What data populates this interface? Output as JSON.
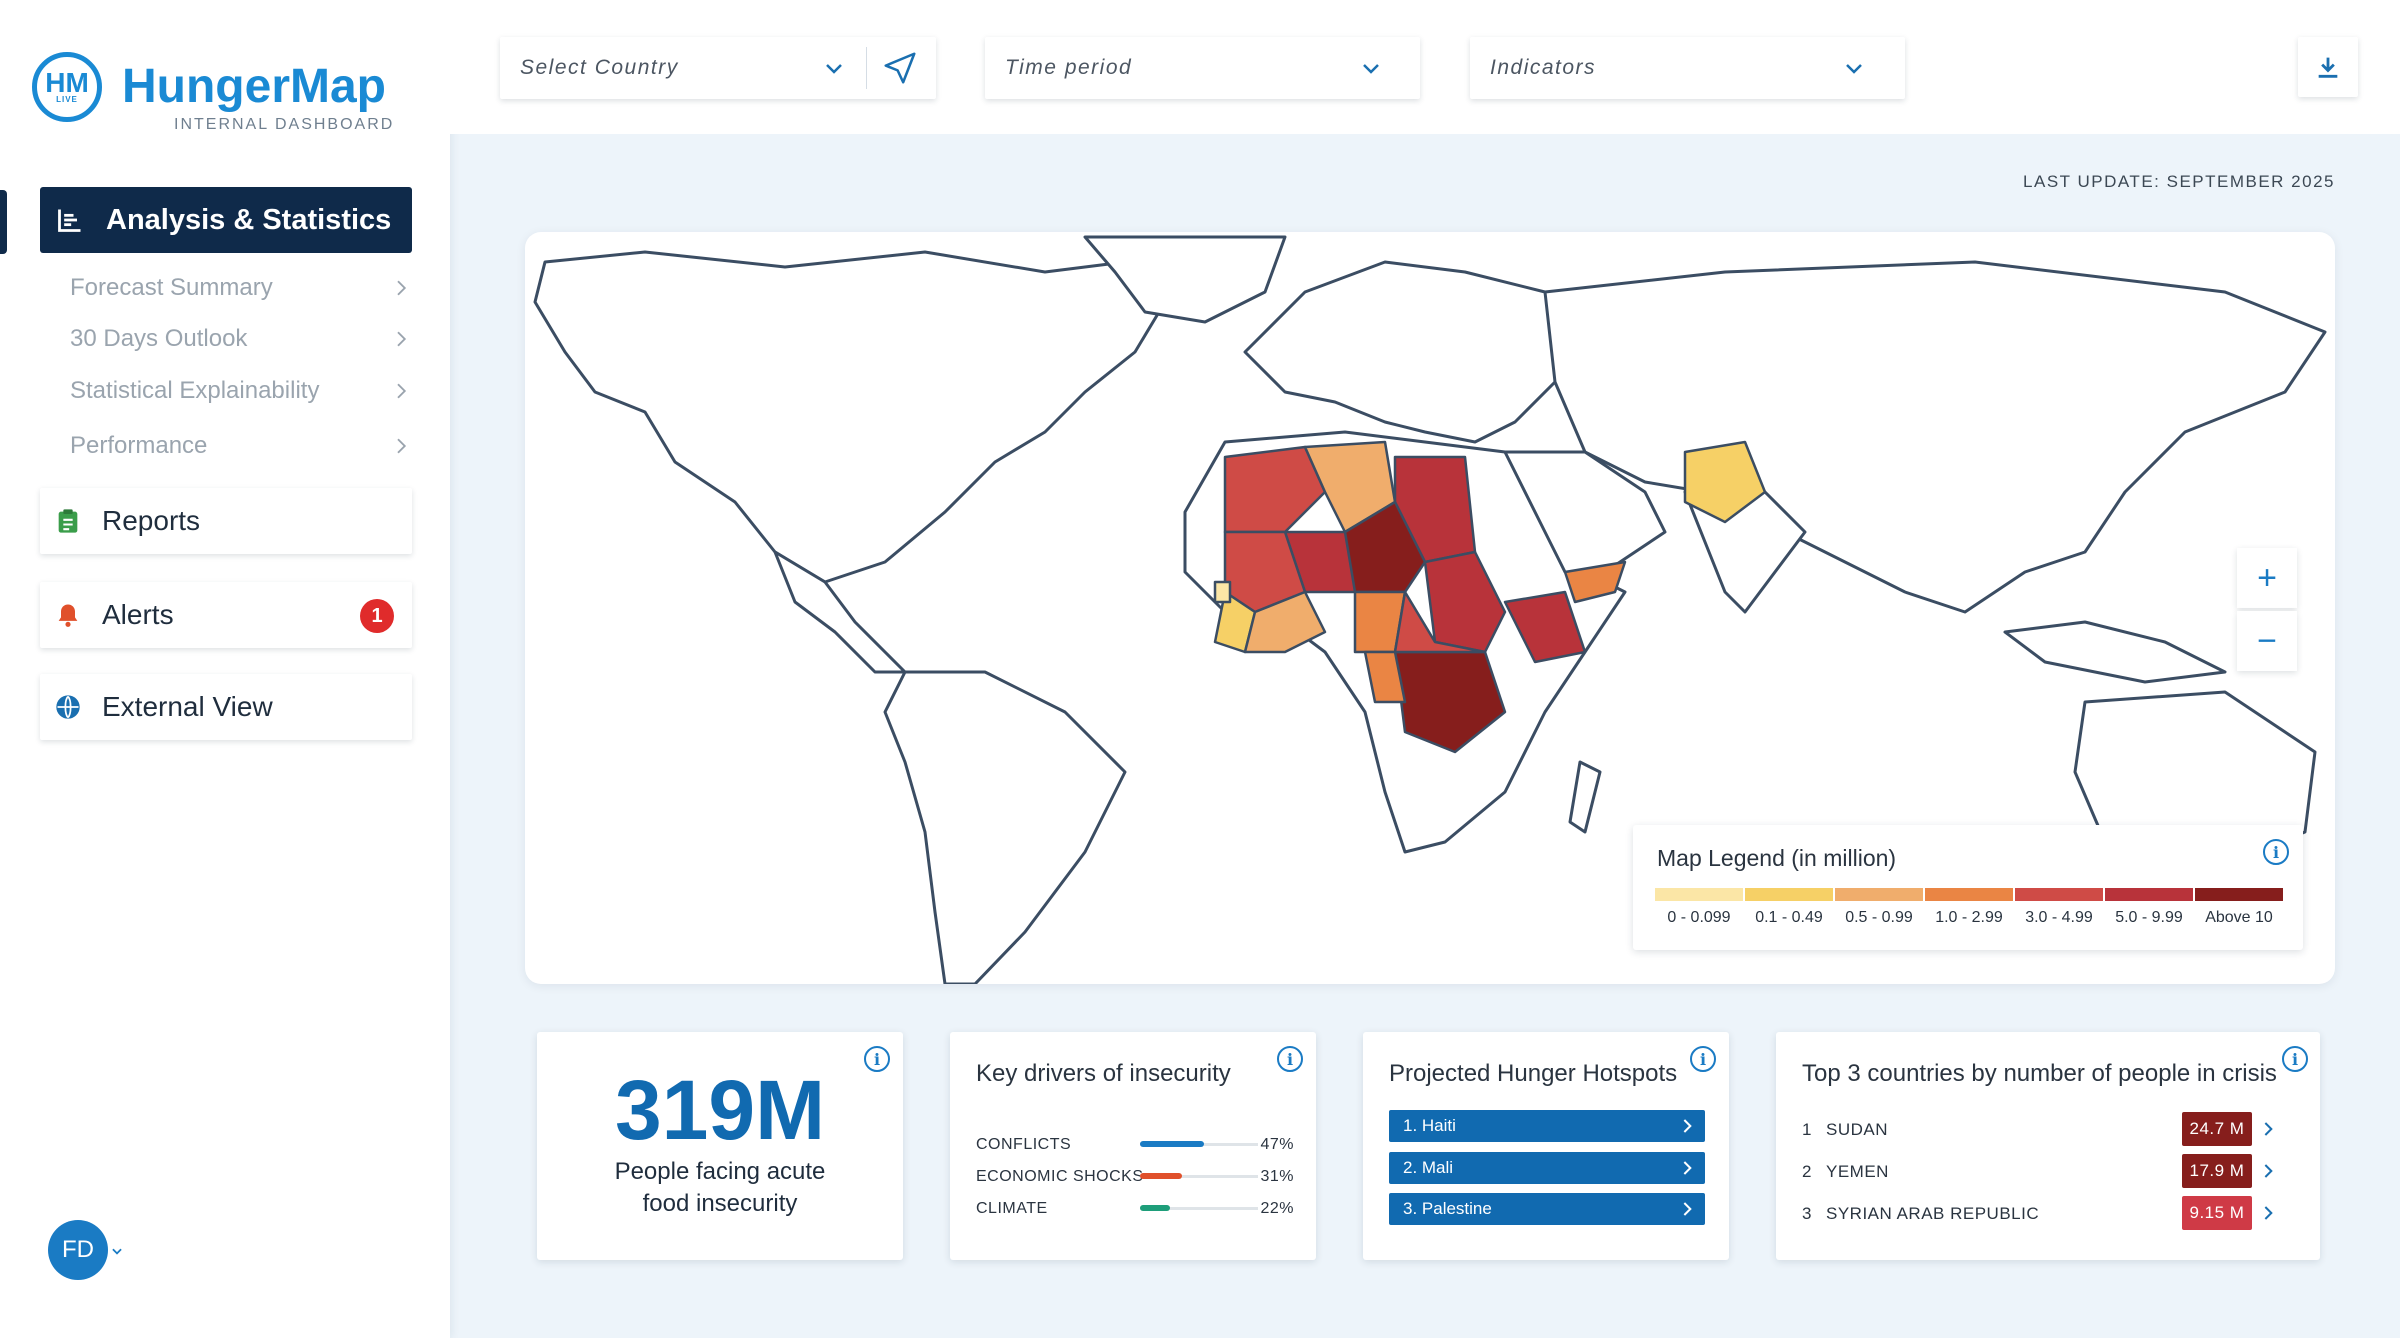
{
  "brand": {
    "logo_abbr": "HM",
    "logo_live": "LIVE",
    "name": "HungerMap",
    "subtitle": "INTERNAL DASHBOARD"
  },
  "sidebar": {
    "active": {
      "label": "Analysis & Statistics",
      "icon": "bar-chart-icon"
    },
    "subitems": [
      {
        "label": "Forecast Summary"
      },
      {
        "label": "30 Days Outlook"
      },
      {
        "label": "Statistical Explainability"
      },
      {
        "label": "Performance"
      }
    ],
    "items": [
      {
        "label": "Reports",
        "icon": "clipboard-icon",
        "color": "#3a9d4a"
      },
      {
        "label": "Alerts",
        "icon": "bell-icon",
        "color": "#e0502b",
        "badge": "1"
      },
      {
        "label": "External  View",
        "icon": "globe-icon",
        "color": "#1a6fb0"
      }
    ],
    "user": {
      "initials": "FD"
    }
  },
  "topbar": {
    "country_placeholder": "Select Country",
    "time_placeholder": "Time period",
    "indicators_placeholder": "Indicators"
  },
  "last_update": "LAST UPDATE: SEPTEMBER 2025",
  "map": {
    "zoom_in": "+",
    "zoom_out": "−",
    "legend": {
      "title": "Map Legend (in million)",
      "items": [
        {
          "label": "0 - 0.099",
          "color": "#fbe6a6"
        },
        {
          "label": "0.1 - 0.49",
          "color": "#f6d066"
        },
        {
          "label": "0.5 - 0.99",
          "color": "#f0ad6c"
        },
        {
          "label": "1.0 - 2.99",
          "color": "#ea8544"
        },
        {
          "label": "3.0 - 4.99",
          "color": "#cf4b46"
        },
        {
          "label": "5.0 - 9.99",
          "color": "#b8333a"
        },
        {
          "label": "Above 10",
          "color": "#861e1c"
        }
      ]
    }
  },
  "cards": {
    "summary": {
      "value": "319M",
      "label_line1": "People facing acute",
      "label_line2": "food insecurity"
    },
    "drivers": {
      "title": "Key drivers of insecurity",
      "items": [
        {
          "label": "CONFLICTS",
          "pct": "47%",
          "value": 0.47,
          "color": "#1a7bc4"
        },
        {
          "label": "ECONOMIC SHOCKS",
          "pct": "31%",
          "value": 0.31,
          "color": "#e0502b"
        },
        {
          "label": "CLIMATE",
          "pct": "22%",
          "value": 0.22,
          "color": "#1e9e7a"
        }
      ]
    },
    "hotspots": {
      "title": "Projected Hunger Hotspots",
      "items": [
        {
          "label": "1. Haiti"
        },
        {
          "label": "2. Mali"
        },
        {
          "label": "3. Palestine"
        }
      ]
    },
    "crisis": {
      "title": "Top 3 countries by number of people in crisis",
      "items": [
        {
          "rank": "1",
          "name": "SUDAN",
          "value": "24.7 M",
          "color": "#861e1c"
        },
        {
          "rank": "2",
          "name": "YEMEN",
          "value": "17.9 M",
          "color": "#861e1c"
        },
        {
          "rank": "3",
          "name": "SYRIAN ARAB REPUBLIC",
          "value": "9.15 M",
          "color": "#cf3a46"
        }
      ]
    }
  }
}
